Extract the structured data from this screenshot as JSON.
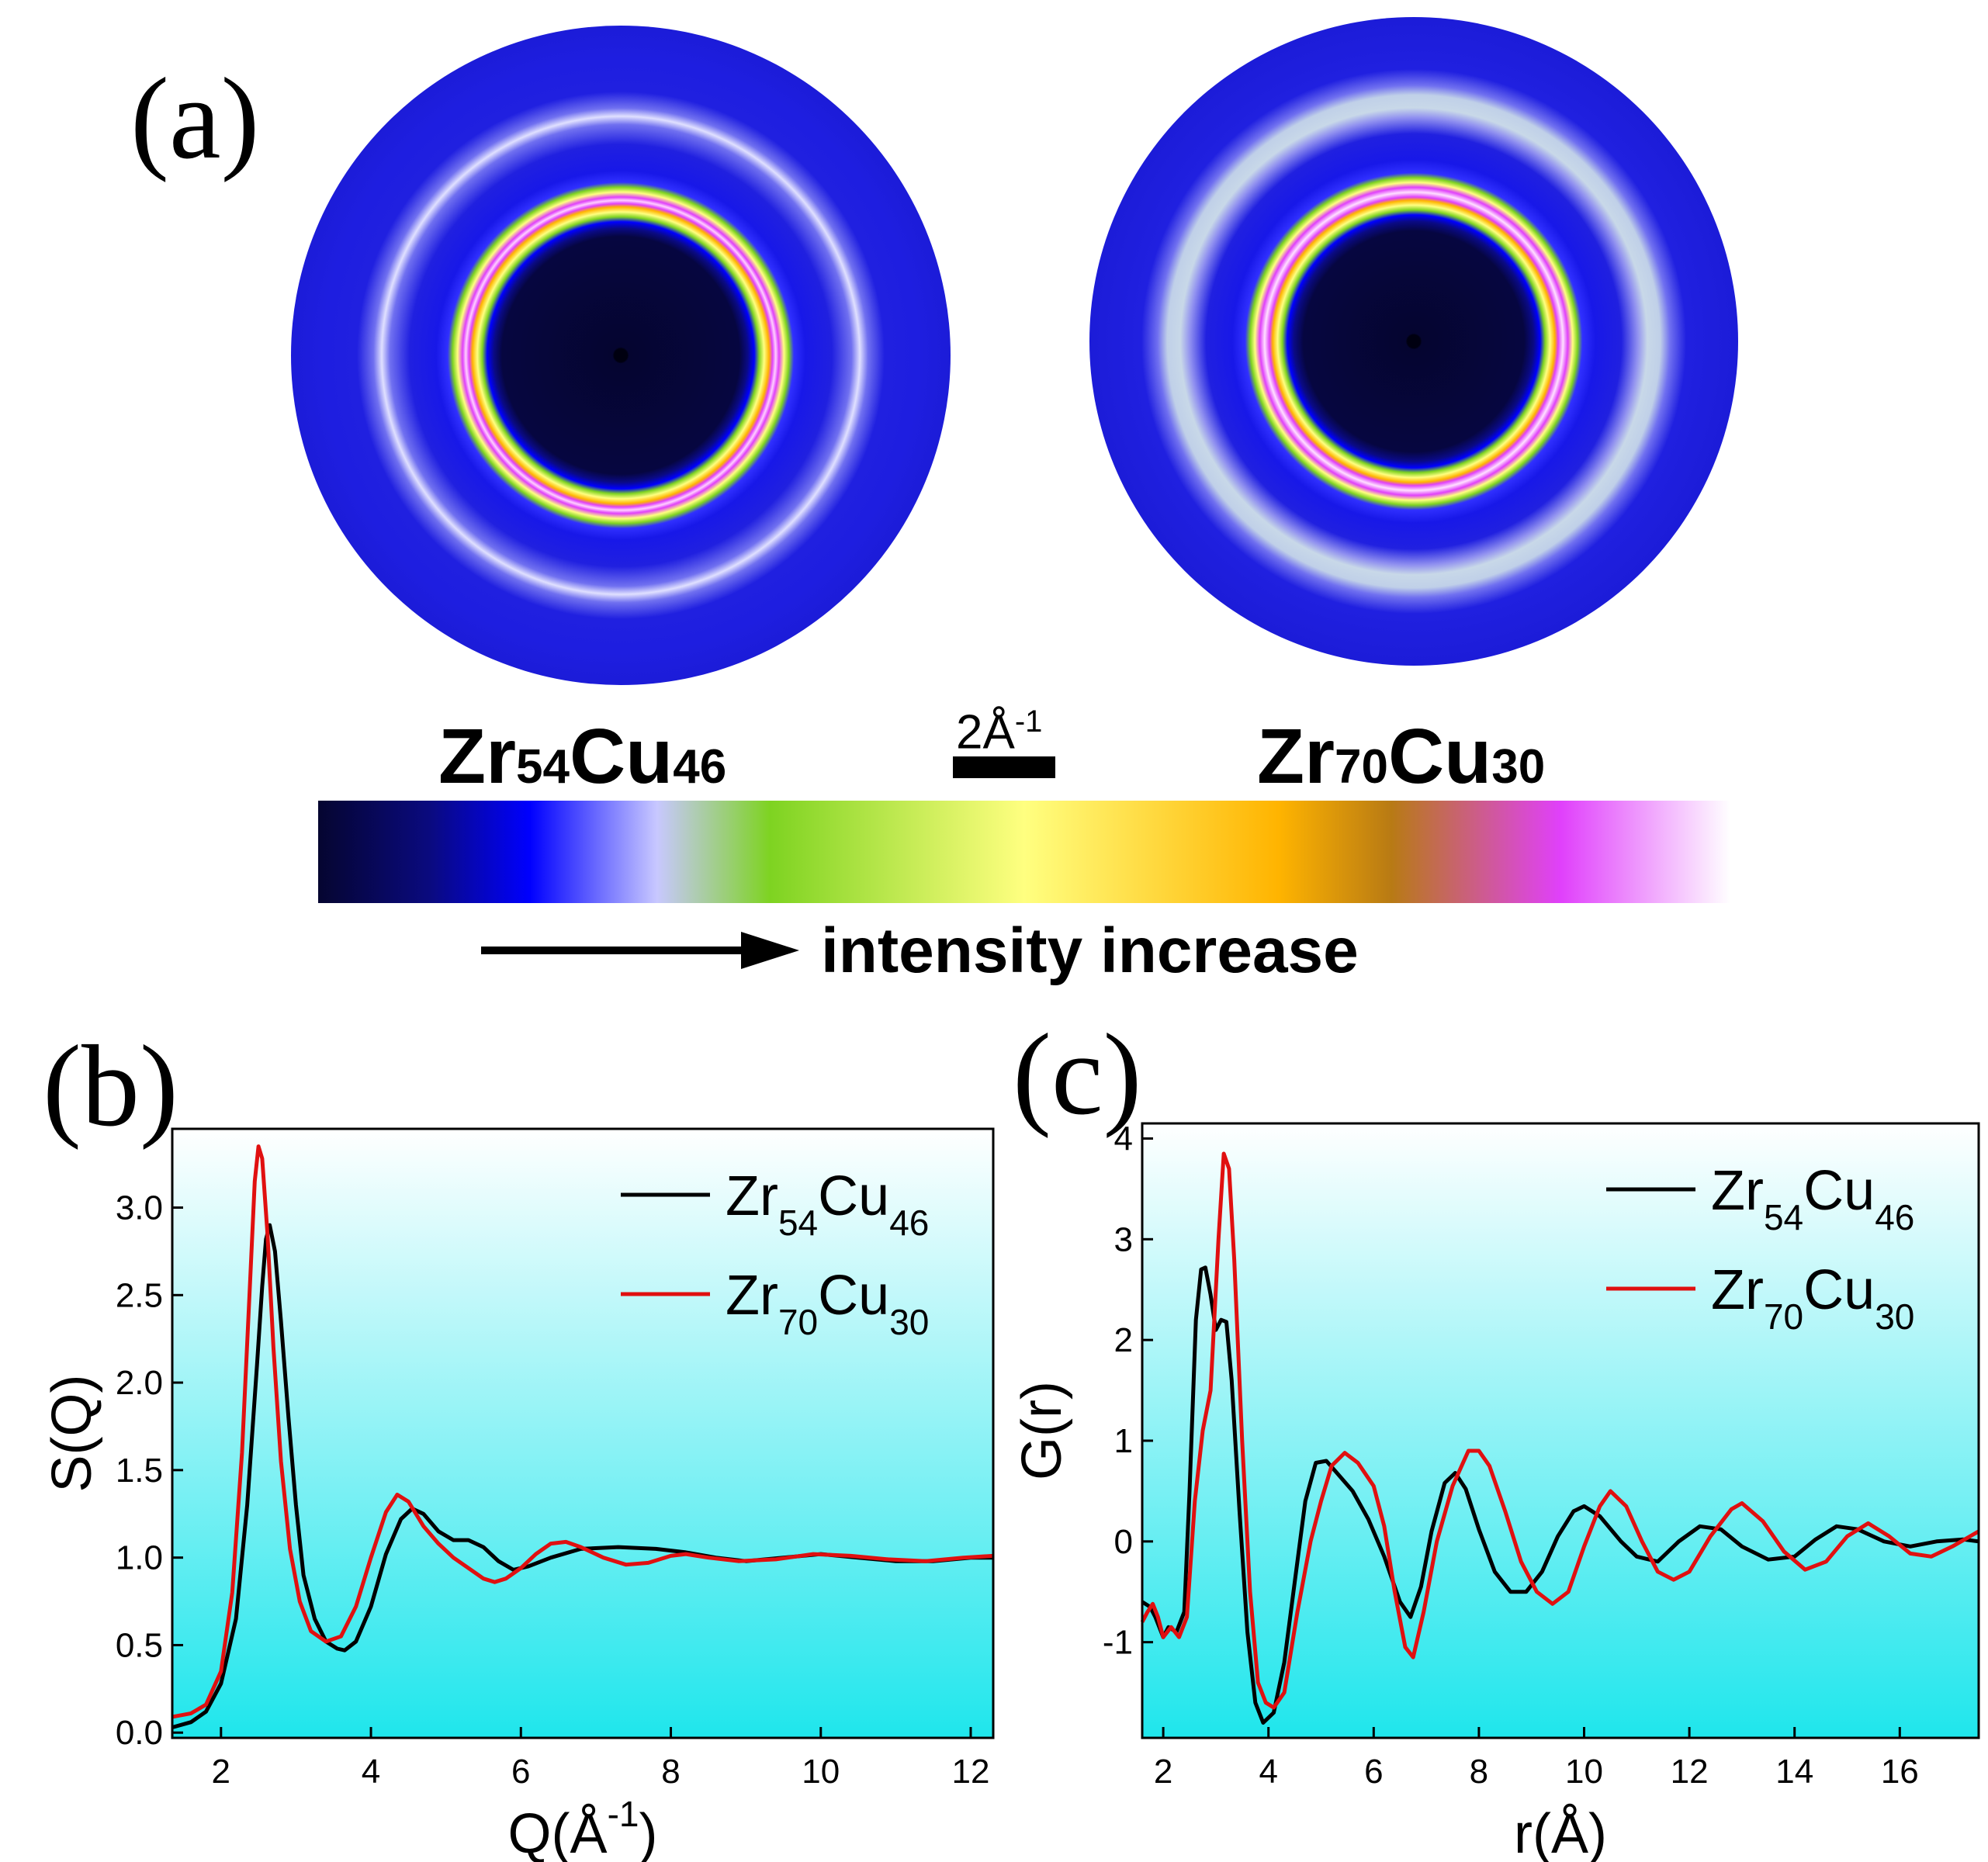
{
  "panel_a": {
    "label": "(a)",
    "sample_left": {
      "el1": "Zr",
      "n1": "54",
      "el2": "Cu",
      "n2": "46"
    },
    "sample_right": {
      "el1": "Zr",
      "n1": "70",
      "el2": "Cu",
      "n2": "30"
    },
    "scale_bar": {
      "value": "2Å",
      "exp": "-1"
    },
    "colorbar_caption": "intensity increase",
    "colorbar_colors": [
      "#050530",
      "#0a0a80",
      "#0000ff",
      "#c8c8ff",
      "#7ed321",
      "#ffff80",
      "#ffb400",
      "#b87a14",
      "#e040fb",
      "#ffffff"
    ]
  },
  "panel_b_label": "(b)",
  "panel_c_label": "(c)",
  "chart_data": [
    {
      "id": "b",
      "type": "line",
      "xlabel": "Q(Å",
      "xlabel_exp": "-1",
      "xlabel_close": ")",
      "ylabel": "S(Q)",
      "xlim": [
        1.35,
        12.3
      ],
      "ylim": [
        -0.03,
        3.45
      ],
      "xticks": [
        2,
        4,
        6,
        8,
        10,
        12
      ],
      "yticks": [
        0.0,
        0.5,
        1.0,
        1.5,
        2.0,
        2.5,
        3.0
      ],
      "ytick_labels": [
        "0.0",
        "0.5",
        "1.0",
        "1.5",
        "2.0",
        "2.5",
        "3.0"
      ],
      "series": [
        {
          "name": "Zr54Cu46",
          "el1": "Zr",
          "n1": "54",
          "el2": "Cu",
          "n2": "46",
          "color": "#000000",
          "points": [
            [
              1.35,
              0.03
            ],
            [
              1.6,
              0.06
            ],
            [
              1.8,
              0.12
            ],
            [
              2.0,
              0.28
            ],
            [
              2.2,
              0.65
            ],
            [
              2.35,
              1.3
            ],
            [
              2.48,
              2.1
            ],
            [
              2.55,
              2.55
            ],
            [
              2.6,
              2.82
            ],
            [
              2.65,
              2.9
            ],
            [
              2.72,
              2.75
            ],
            [
              2.8,
              2.35
            ],
            [
              2.9,
              1.8
            ],
            [
              3.0,
              1.3
            ],
            [
              3.1,
              0.9
            ],
            [
              3.25,
              0.65
            ],
            [
              3.4,
              0.52
            ],
            [
              3.55,
              0.48
            ],
            [
              3.65,
              0.47
            ],
            [
              3.8,
              0.52
            ],
            [
              4.0,
              0.72
            ],
            [
              4.2,
              1.02
            ],
            [
              4.4,
              1.22
            ],
            [
              4.55,
              1.28
            ],
            [
              4.7,
              1.25
            ],
            [
              4.9,
              1.15
            ],
            [
              5.1,
              1.1
            ],
            [
              5.3,
              1.1
            ],
            [
              5.5,
              1.06
            ],
            [
              5.7,
              0.98
            ],
            [
              5.9,
              0.93
            ],
            [
              6.1,
              0.95
            ],
            [
              6.4,
              1.0
            ],
            [
              6.8,
              1.05
            ],
            [
              7.3,
              1.06
            ],
            [
              7.8,
              1.05
            ],
            [
              8.2,
              1.03
            ],
            [
              8.6,
              1.0
            ],
            [
              9.0,
              0.98
            ],
            [
              9.5,
              1.0
            ],
            [
              10.0,
              1.02
            ],
            [
              10.5,
              1.0
            ],
            [
              11.0,
              0.98
            ],
            [
              11.5,
              0.98
            ],
            [
              12.0,
              1.0
            ],
            [
              12.3,
              1.0
            ]
          ]
        },
        {
          "name": "Zr70Cu30",
          "el1": "Zr",
          "n1": "70",
          "el2": "Cu",
          "n2": "30",
          "color": "#e01010",
          "points": [
            [
              1.35,
              0.09
            ],
            [
              1.6,
              0.11
            ],
            [
              1.8,
              0.16
            ],
            [
              2.0,
              0.35
            ],
            [
              2.15,
              0.8
            ],
            [
              2.28,
              1.6
            ],
            [
              2.38,
              2.5
            ],
            [
              2.45,
              3.15
            ],
            [
              2.5,
              3.35
            ],
            [
              2.55,
              3.28
            ],
            [
              2.62,
              2.85
            ],
            [
              2.7,
              2.2
            ],
            [
              2.8,
              1.55
            ],
            [
              2.92,
              1.05
            ],
            [
              3.05,
              0.75
            ],
            [
              3.2,
              0.58
            ],
            [
              3.4,
              0.52
            ],
            [
              3.6,
              0.55
            ],
            [
              3.8,
              0.72
            ],
            [
              4.0,
              1.0
            ],
            [
              4.2,
              1.26
            ],
            [
              4.35,
              1.36
            ],
            [
              4.5,
              1.32
            ],
            [
              4.7,
              1.18
            ],
            [
              4.9,
              1.08
            ],
            [
              5.1,
              1.0
            ],
            [
              5.3,
              0.94
            ],
            [
              5.5,
              0.88
            ],
            [
              5.65,
              0.86
            ],
            [
              5.8,
              0.88
            ],
            [
              6.0,
              0.94
            ],
            [
              6.2,
              1.02
            ],
            [
              6.4,
              1.08
            ],
            [
              6.6,
              1.09
            ],
            [
              6.8,
              1.06
            ],
            [
              7.1,
              1.0
            ],
            [
              7.4,
              0.96
            ],
            [
              7.7,
              0.97
            ],
            [
              8.0,
              1.01
            ],
            [
              8.2,
              1.02
            ],
            [
              8.5,
              1.0
            ],
            [
              8.9,
              0.98
            ],
            [
              9.4,
              0.99
            ],
            [
              9.9,
              1.02
            ],
            [
              10.4,
              1.01
            ],
            [
              10.9,
              0.99
            ],
            [
              11.4,
              0.98
            ],
            [
              11.9,
              1.0
            ],
            [
              12.3,
              1.01
            ]
          ]
        }
      ]
    },
    {
      "id": "c",
      "type": "line",
      "xlabel": "r(Å)",
      "ylabel": "G(r)",
      "xlim": [
        1.6,
        17.5
      ],
      "ylim": [
        -1.95,
        4.15
      ],
      "xticks": [
        2,
        4,
        6,
        8,
        10,
        12,
        14,
        16
      ],
      "yticks": [
        -1,
        0,
        1,
        2,
        3,
        4
      ],
      "ytick_labels": [
        "-1",
        "0",
        "1",
        "2",
        "3",
        "4"
      ],
      "series": [
        {
          "name": "Zr54Cu46",
          "el1": "Zr",
          "n1": "54",
          "el2": "Cu",
          "n2": "46",
          "color": "#000000",
          "points": [
            [
              1.6,
              -0.6
            ],
            [
              1.75,
              -0.65
            ],
            [
              1.85,
              -0.75
            ],
            [
              2.0,
              -0.95
            ],
            [
              2.1,
              -0.85
            ],
            [
              2.25,
              -0.9
            ],
            [
              2.4,
              -0.7
            ],
            [
              2.5,
              0.5
            ],
            [
              2.62,
              2.2
            ],
            [
              2.72,
              2.7
            ],
            [
              2.8,
              2.72
            ],
            [
              2.9,
              2.45
            ],
            [
              3.0,
              2.1
            ],
            [
              3.1,
              2.2
            ],
            [
              3.2,
              2.18
            ],
            [
              3.3,
              1.6
            ],
            [
              3.45,
              0.3
            ],
            [
              3.6,
              -0.9
            ],
            [
              3.75,
              -1.6
            ],
            [
              3.9,
              -1.8
            ],
            [
              4.1,
              -1.7
            ],
            [
              4.3,
              -1.2
            ],
            [
              4.5,
              -0.4
            ],
            [
              4.7,
              0.4
            ],
            [
              4.9,
              0.78
            ],
            [
              5.1,
              0.8
            ],
            [
              5.3,
              0.68
            ],
            [
              5.6,
              0.5
            ],
            [
              5.9,
              0.22
            ],
            [
              6.2,
              -0.15
            ],
            [
              6.5,
              -0.6
            ],
            [
              6.7,
              -0.75
            ],
            [
              6.9,
              -0.45
            ],
            [
              7.1,
              0.1
            ],
            [
              7.35,
              0.58
            ],
            [
              7.55,
              0.68
            ],
            [
              7.75,
              0.52
            ],
            [
              8.0,
              0.12
            ],
            [
              8.3,
              -0.3
            ],
            [
              8.6,
              -0.5
            ],
            [
              8.9,
              -0.5
            ],
            [
              9.2,
              -0.3
            ],
            [
              9.5,
              0.05
            ],
            [
              9.8,
              0.3
            ],
            [
              10.0,
              0.35
            ],
            [
              10.3,
              0.25
            ],
            [
              10.7,
              0.0
            ],
            [
              11.0,
              -0.15
            ],
            [
              11.4,
              -0.2
            ],
            [
              11.8,
              0.0
            ],
            [
              12.2,
              0.15
            ],
            [
              12.6,
              0.12
            ],
            [
              13.0,
              -0.05
            ],
            [
              13.5,
              -0.18
            ],
            [
              14.0,
              -0.15
            ],
            [
              14.4,
              0.02
            ],
            [
              14.8,
              0.15
            ],
            [
              15.2,
              0.12
            ],
            [
              15.7,
              0.0
            ],
            [
              16.2,
              -0.05
            ],
            [
              16.7,
              0.0
            ],
            [
              17.2,
              0.02
            ],
            [
              17.5,
              0.0
            ]
          ]
        },
        {
          "name": "Zr70Cu30",
          "el1": "Zr",
          "n1": "70",
          "el2": "Cu",
          "n2": "30",
          "color": "#e01010",
          "points": [
            [
              1.6,
              -0.8
            ],
            [
              1.7,
              -0.7
            ],
            [
              1.8,
              -0.62
            ],
            [
              1.9,
              -0.75
            ],
            [
              2.0,
              -0.95
            ],
            [
              2.15,
              -0.85
            ],
            [
              2.3,
              -0.95
            ],
            [
              2.45,
              -0.75
            ],
            [
              2.6,
              0.4
            ],
            [
              2.75,
              1.1
            ],
            [
              2.9,
              1.5
            ],
            [
              3.05,
              3.0
            ],
            [
              3.15,
              3.85
            ],
            [
              3.25,
              3.7
            ],
            [
              3.35,
              2.8
            ],
            [
              3.5,
              1.0
            ],
            [
              3.65,
              -0.5
            ],
            [
              3.8,
              -1.4
            ],
            [
              3.95,
              -1.6
            ],
            [
              4.1,
              -1.65
            ],
            [
              4.3,
              -1.5
            ],
            [
              4.55,
              -0.7
            ],
            [
              4.8,
              0.0
            ],
            [
              5.0,
              0.4
            ],
            [
              5.2,
              0.75
            ],
            [
              5.45,
              0.88
            ],
            [
              5.7,
              0.78
            ],
            [
              6.0,
              0.55
            ],
            [
              6.2,
              0.15
            ],
            [
              6.4,
              -0.5
            ],
            [
              6.6,
              -1.05
            ],
            [
              6.75,
              -1.15
            ],
            [
              6.95,
              -0.7
            ],
            [
              7.2,
              0.0
            ],
            [
              7.5,
              0.55
            ],
            [
              7.8,
              0.9
            ],
            [
              8.0,
              0.9
            ],
            [
              8.2,
              0.75
            ],
            [
              8.5,
              0.3
            ],
            [
              8.8,
              -0.2
            ],
            [
              9.1,
              -0.5
            ],
            [
              9.4,
              -0.62
            ],
            [
              9.7,
              -0.5
            ],
            [
              10.0,
              -0.05
            ],
            [
              10.3,
              0.35
            ],
            [
              10.5,
              0.5
            ],
            [
              10.8,
              0.35
            ],
            [
              11.1,
              0.0
            ],
            [
              11.4,
              -0.3
            ],
            [
              11.7,
              -0.38
            ],
            [
              12.0,
              -0.3
            ],
            [
              12.4,
              0.05
            ],
            [
              12.8,
              0.32
            ],
            [
              13.0,
              0.38
            ],
            [
              13.4,
              0.2
            ],
            [
              13.8,
              -0.1
            ],
            [
              14.2,
              -0.28
            ],
            [
              14.6,
              -0.2
            ],
            [
              15.0,
              0.05
            ],
            [
              15.4,
              0.18
            ],
            [
              15.8,
              0.05
            ],
            [
              16.2,
              -0.12
            ],
            [
              16.6,
              -0.15
            ],
            [
              17.0,
              -0.05
            ],
            [
              17.5,
              0.1
            ]
          ]
        }
      ]
    }
  ]
}
